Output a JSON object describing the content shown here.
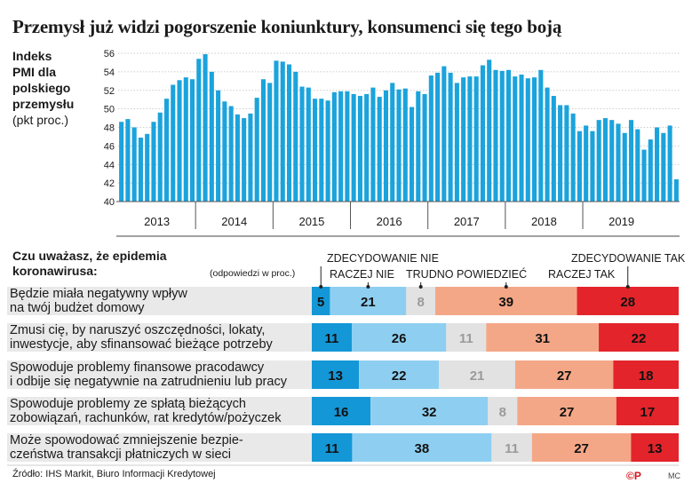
{
  "title": "Przemysł już widzi pogorszenie koniunktury, konsumenci się tego boją",
  "pmi_label": {
    "bold_lines": [
      "Indeks",
      "PMI dla",
      "polskiego",
      "przemysłu"
    ],
    "normal_line": "(pkt proc.)"
  },
  "chart_data": [
    {
      "type": "bar",
      "title": "",
      "ylim": [
        40,
        56
      ],
      "yticks": [
        "40",
        "42",
        "44",
        "46",
        "48",
        "50",
        "52",
        "54",
        "56"
      ],
      "x_year_labels": [
        "2013",
        "2014",
        "2015",
        "2016",
        "2017",
        "2018",
        "2019"
      ],
      "grid": true,
      "bar_color": "#1ba3dc",
      "values": [
        48.6,
        48.9,
        48.0,
        46.9,
        47.3,
        48.6,
        49.6,
        51.1,
        52.6,
        53.1,
        53.4,
        53.2,
        55.4,
        55.9,
        54.0,
        52.0,
        50.8,
        50.3,
        49.4,
        49.0,
        49.5,
        51.2,
        53.2,
        52.8,
        55.2,
        55.1,
        54.8,
        54.0,
        52.4,
        52.3,
        51.1,
        51.1,
        50.9,
        51.8,
        51.9,
        51.9,
        51.6,
        51.4,
        51.6,
        52.3,
        51.3,
        52.0,
        52.8,
        52.1,
        52.2,
        50.2,
        51.9,
        51.6,
        53.6,
        53.9,
        54.6,
        53.9,
        52.8,
        53.4,
        53.5,
        53.5,
        54.7,
        55.3,
        54.2,
        54.1,
        54.2,
        53.5,
        53.7,
        53.3,
        53.4,
        54.2,
        52.3,
        51.4,
        50.4,
        50.4,
        49.5,
        47.6,
        48.2,
        47.6,
        48.8,
        49.0,
        48.8,
        48.4,
        47.4,
        48.8,
        47.8,
        45.6,
        46.7,
        48.0,
        47.4,
        48.2,
        42.4
      ]
    },
    {
      "type": "bar",
      "stacked": true,
      "orientation": "horizontal",
      "title": "Czu uważasz, że epidemia koronawirusa:",
      "note": "(odpowiedzi w proc.)",
      "legend_position": "top",
      "series": [
        {
          "name": "ZDECYDOWANIE NIE",
          "color": "#1497d6",
          "text_color": "#111111",
          "values": [
            5,
            11,
            13,
            16,
            11
          ]
        },
        {
          "name": "RACZEJ NIE",
          "color": "#8ecff1",
          "text_color": "#111111",
          "values": [
            21,
            26,
            22,
            32,
            38
          ]
        },
        {
          "name": "TRUDNO POWIEDZIEĆ",
          "color": "#e2e2e2",
          "text_color": "#9a9a9a",
          "values": [
            8,
            11,
            21,
            8,
            11
          ]
        },
        {
          "name": "RACZEJ TAK",
          "color": "#f4a787",
          "text_color": "#111111",
          "values": [
            39,
            31,
            27,
            27,
            27
          ]
        },
        {
          "name": "ZDECYDOWANIE TAK",
          "color": "#e3242b",
          "text_color": "#111111",
          "values": [
            28,
            22,
            18,
            17,
            13
          ]
        }
      ],
      "categories": [
        [
          "Będzie miała negatywny wpływ",
          "na twój budżet domowy"
        ],
        [
          "Zmusi cię, by naruszyć oszczędności, lokaty,",
          "inwestycje, aby sfinansować bieżące potrzeby"
        ],
        [
          "Spowoduje problemy finansowe pracodawcy",
          "i odbije się negatywnie na zatrudnieniu lub pracy"
        ],
        [
          "Spowoduje problemy ze spłatą bieżących",
          "zobowiązań, rachunków, rat kredytów/pożyczek"
        ],
        [
          "Może spowodować zmniejszenie bezpie-",
          "czeństwa transakcji płatniczych w sieci"
        ]
      ],
      "legend_lines": {
        "zdecydowanie_nie": "ZDECYDOWANIE NIE",
        "raczej_nie": "RACZEJ NIE",
        "trudno": "TRUDNO POWIEDZIEĆ",
        "raczej_tak": "RACZEJ TAK",
        "zdecydowanie_tak": "ZDECYDOWANIE TAK"
      }
    }
  ],
  "source": "Źródło: IHS Markit, Biuro Informacji Kredytowej",
  "logo": "©P",
  "author": "MC"
}
